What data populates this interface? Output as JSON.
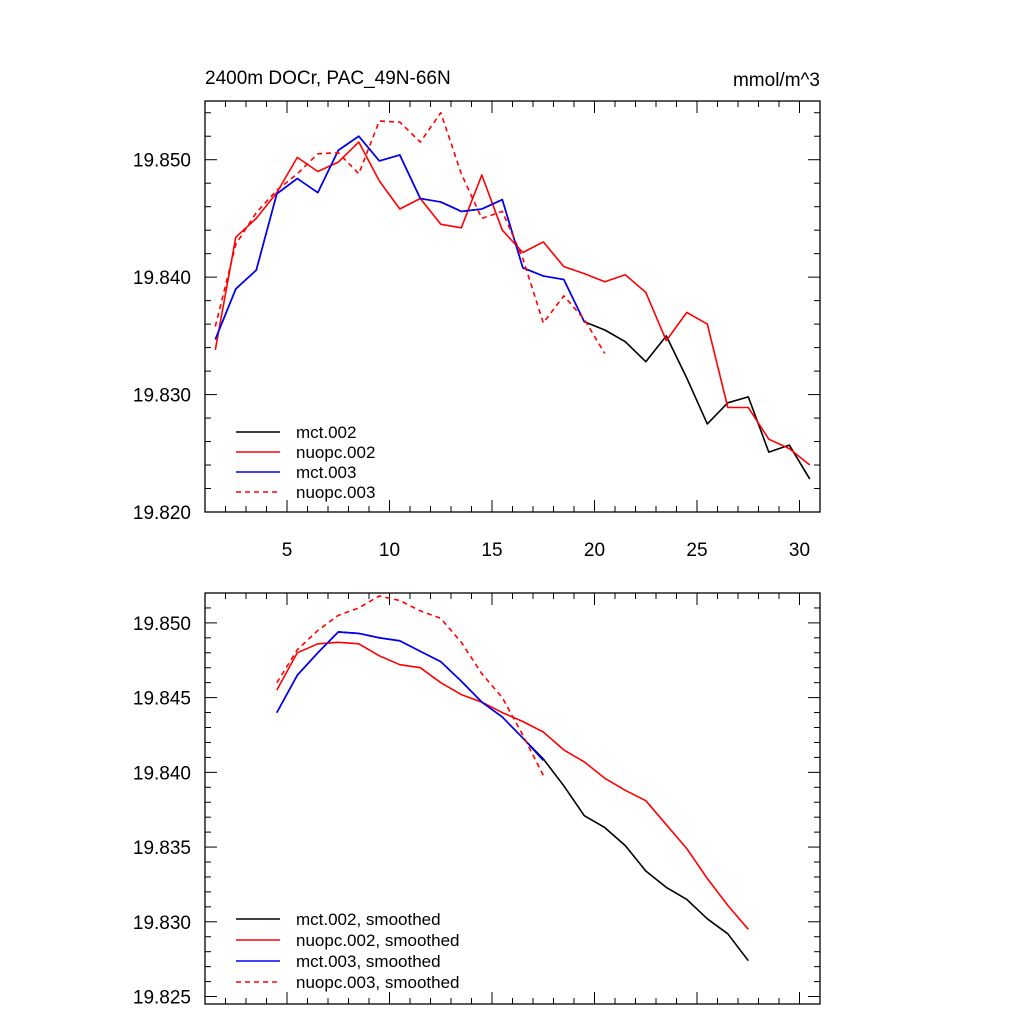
{
  "chart_data": [
    {
      "type": "line",
      "title": "2400m DOCr, PAC_49N-66N",
      "units": "mmol/m^3",
      "xlim": [
        1,
        31
      ],
      "ylim": [
        19.82,
        19.855
      ],
      "x_ticks": [
        5,
        10,
        15,
        20,
        25,
        30
      ],
      "x_tick_labels": [
        "5",
        "10",
        "15",
        "20",
        "25",
        "30"
      ],
      "y_ticks": [
        19.82,
        19.83,
        19.84,
        19.85
      ],
      "y_tick_labels": [
        "19.820",
        "19.830",
        "19.840",
        "19.850"
      ],
      "legend_position": "lower-left",
      "series": [
        {
          "name": "mct.002",
          "color": "#000000",
          "dash": "solid",
          "x": [
            1.5,
            2.5,
            3.5,
            4.5,
            5.5,
            6.5,
            7.5,
            8.5,
            9.5,
            10.5,
            11.5,
            12.5,
            13.5,
            14.5,
            15.5,
            16.5,
            17.5,
            18.5,
            19.5,
            20.5,
            21.5,
            22.5,
            23.5,
            24.5,
            25.5,
            26.5,
            27.5,
            28.5,
            29.5,
            30.5
          ],
          "y": [
            19.8347,
            19.839,
            19.8406,
            19.8471,
            19.8484,
            19.8472,
            19.8508,
            19.852,
            19.8499,
            19.8504,
            19.8467,
            19.8464,
            19.8456,
            19.8458,
            19.8466,
            19.8408,
            19.8401,
            19.8398,
            19.8362,
            19.8355,
            19.8345,
            19.8328,
            19.835,
            19.8314,
            19.8275,
            19.8293,
            19.8298,
            19.8251,
            19.8257,
            19.8228
          ]
        },
        {
          "name": "nuopc.002",
          "color": "#ff0000",
          "dash": "solid",
          "x": [
            1.5,
            2.5,
            3.5,
            4.5,
            5.5,
            6.5,
            7.5,
            8.5,
            9.5,
            10.5,
            11.5,
            12.5,
            13.5,
            14.5,
            15.5,
            16.5,
            17.5,
            18.5,
            19.5,
            20.5,
            21.5,
            22.5,
            23.5,
            24.5,
            25.5,
            26.5,
            27.5,
            28.5,
            29.5,
            30.5
          ],
          "y": [
            19.8338,
            19.8434,
            19.845,
            19.8472,
            19.8502,
            19.849,
            19.8498,
            19.8515,
            19.8482,
            19.8458,
            19.8467,
            19.8445,
            19.8442,
            19.8487,
            19.844,
            19.8421,
            19.843,
            19.8409,
            19.8403,
            19.8396,
            19.8402,
            19.8387,
            19.8346,
            19.837,
            19.836,
            19.8289,
            19.8289,
            19.8262,
            19.8254,
            19.824
          ]
        },
        {
          "name": "mct.003",
          "color": "#0000ff",
          "dash": "solid",
          "x": [
            1.5,
            2.5,
            3.5,
            4.5,
            5.5,
            6.5,
            7.5,
            8.5,
            9.5,
            10.5,
            11.5,
            12.5,
            13.5,
            14.5,
            15.5,
            16.5,
            17.5,
            18.5,
            19.5
          ],
          "y": [
            19.8347,
            19.839,
            19.8406,
            19.8471,
            19.8484,
            19.8472,
            19.8508,
            19.852,
            19.8499,
            19.8504,
            19.8467,
            19.8464,
            19.8456,
            19.8458,
            19.8466,
            19.8408,
            19.8401,
            19.8398,
            19.8362
          ]
        },
        {
          "name": "nuopc.003",
          "color": "#ff0000",
          "dash": "dashed",
          "x": [
            1.5,
            2.5,
            3.5,
            4.5,
            5.5,
            6.5,
            7.5,
            8.5,
            9.5,
            10.5,
            11.5,
            12.5,
            13.5,
            14.5,
            15.5,
            16.5,
            17.5,
            18.5,
            19.5,
            20.5
          ],
          "y": [
            19.8358,
            19.8428,
            19.8455,
            19.8474,
            19.8488,
            19.8505,
            19.8506,
            19.8488,
            19.8533,
            19.8532,
            19.8515,
            19.854,
            19.8488,
            19.845,
            19.8456,
            19.8416,
            19.8361,
            19.8384,
            19.8364,
            19.8335
          ]
        }
      ]
    },
    {
      "type": "line",
      "xlim": [
        1,
        31
      ],
      "ylim": [
        19.8245,
        19.852
      ],
      "x_ticks": [
        5,
        10,
        15,
        20,
        25,
        30
      ],
      "x_tick_labels": [
        "",
        "",
        "",
        "",
        "",
        ""
      ],
      "y_ticks": [
        19.825,
        19.83,
        19.835,
        19.84,
        19.845,
        19.85
      ],
      "y_tick_labels": [
        "19.825",
        "19.830",
        "19.835",
        "19.840",
        "19.845",
        "19.850"
      ],
      "legend_position": "lower-left",
      "series": [
        {
          "name": "mct.002, smoothed",
          "color": "#000000",
          "dash": "solid",
          "x": [
            4.5,
            5.5,
            6.5,
            7.5,
            8.5,
            9.5,
            10.5,
            11.5,
            12.5,
            13.5,
            14.5,
            15.5,
            16.5,
            17.5,
            18.5,
            19.5,
            20.5,
            21.5,
            22.5,
            23.5,
            24.5,
            25.5,
            26.5,
            27.5
          ],
          "y": [
            19.844,
            19.8465,
            19.848,
            19.8494,
            19.8493,
            19.849,
            19.8488,
            19.8481,
            19.8474,
            19.8461,
            19.8447,
            19.8437,
            19.8423,
            19.8409,
            19.8391,
            19.8371,
            19.8363,
            19.8351,
            19.8334,
            19.8323,
            19.8315,
            19.8302,
            19.8292,
            19.8274
          ]
        },
        {
          "name": "nuopc.002, smoothed",
          "color": "#ff0000",
          "dash": "solid",
          "x": [
            4.5,
            5.5,
            6.5,
            7.5,
            8.5,
            9.5,
            10.5,
            11.5,
            12.5,
            13.5,
            14.5,
            15.5,
            16.5,
            17.5,
            18.5,
            19.5,
            20.5,
            21.5,
            22.5,
            23.5,
            24.5,
            25.5,
            26.5,
            27.5
          ],
          "y": [
            19.8455,
            19.848,
            19.8486,
            19.8487,
            19.8486,
            19.8478,
            19.8472,
            19.847,
            19.846,
            19.8452,
            19.8447,
            19.844,
            19.8434,
            19.8427,
            19.8415,
            19.8407,
            19.8396,
            19.8388,
            19.8381,
            19.8365,
            19.8349,
            19.8329,
            19.8311,
            19.8295
          ]
        },
        {
          "name": "mct.003, smoothed",
          "color": "#0000ff",
          "dash": "solid",
          "x": [
            4.5,
            5.5,
            6.5,
            7.5,
            8.5,
            9.5,
            10.5,
            11.5,
            12.5,
            13.5,
            14.5,
            15.5,
            16.5,
            17.5
          ],
          "y": [
            19.844,
            19.8465,
            19.848,
            19.8494,
            19.8493,
            19.849,
            19.8488,
            19.8481,
            19.8474,
            19.8461,
            19.8447,
            19.8437,
            19.8423,
            19.8408
          ]
        },
        {
          "name": "nuopc.003, smoothed",
          "color": "#ff0000",
          "dash": "dashed",
          "x": [
            4.5,
            5.5,
            6.5,
            7.5,
            8.5,
            9.5,
            10.5,
            11.5,
            12.5,
            13.5,
            14.5,
            15.5,
            16.5,
            17.5
          ],
          "y": [
            19.846,
            19.8482,
            19.8495,
            19.8505,
            19.851,
            19.8518,
            19.8515,
            19.8508,
            19.8503,
            19.8487,
            19.8466,
            19.845,
            19.8425,
            19.8398
          ]
        }
      ]
    }
  ]
}
